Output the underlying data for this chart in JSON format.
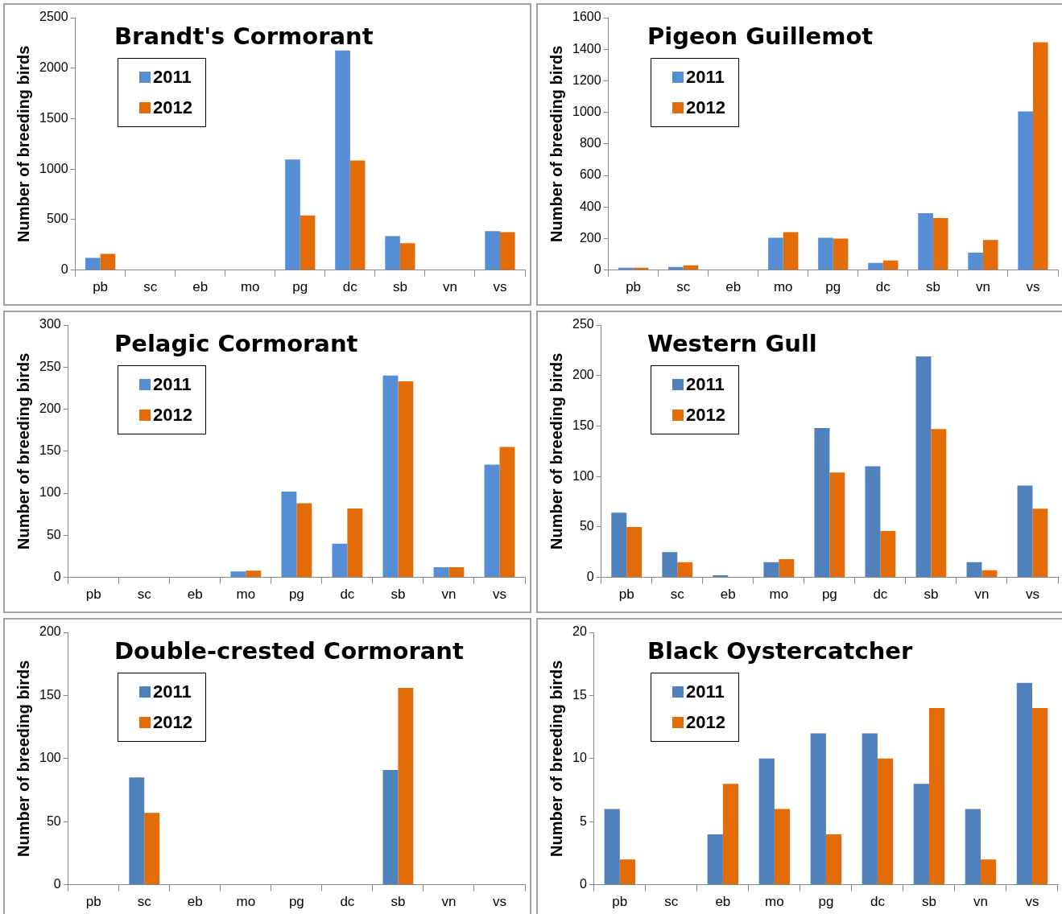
{
  "chart_data": [
    {
      "type": "bar",
      "title": "Brandt's Cormorant",
      "ylabel": "Number of breeding birds",
      "categories": [
        "pb",
        "sc",
        "eb",
        "mo",
        "pg",
        "dc",
        "sb",
        "vn",
        "vs"
      ],
      "ylim": [
        0,
        2500
      ],
      "yticks": [
        0,
        500,
        1000,
        1500,
        2000,
        2500
      ],
      "legend": "top left",
      "series": [
        {
          "name": "2011",
          "color": "#558ed5",
          "values": [
            120,
            0,
            0,
            0,
            1095,
            2175,
            335,
            0,
            385
          ]
        },
        {
          "name": "2012",
          "color": "#e36c09",
          "values": [
            160,
            0,
            0,
            0,
            540,
            1085,
            265,
            0,
            375
          ]
        }
      ]
    },
    {
      "type": "bar",
      "title": "Pigeon Guillemot",
      "ylabel": "Number of breeding birds",
      "categories": [
        "pb",
        "sc",
        "eb",
        "mo",
        "pg",
        "dc",
        "sb",
        "vn",
        "vs"
      ],
      "ylim": [
        0,
        1600
      ],
      "yticks": [
        0,
        200,
        400,
        600,
        800,
        1000,
        1200,
        1400,
        1600
      ],
      "legend": "top left",
      "series": [
        {
          "name": "2011",
          "color": "#558ed5",
          "values": [
            15,
            20,
            0,
            205,
            205,
            45,
            360,
            110,
            1005
          ]
        },
        {
          "name": "2012",
          "color": "#e36c09",
          "values": [
            15,
            30,
            0,
            240,
            200,
            60,
            330,
            190,
            1445
          ]
        }
      ]
    },
    {
      "type": "bar",
      "title": "Pelagic Cormorant",
      "ylabel": "Number of breeding birds",
      "categories": [
        "pb",
        "sc",
        "eb",
        "mo",
        "pg",
        "dc",
        "sb",
        "vn",
        "vs"
      ],
      "ylim": [
        0,
        300
      ],
      "yticks": [
        0,
        50,
        100,
        150,
        200,
        250,
        300
      ],
      "legend": "top left",
      "series": [
        {
          "name": "2011",
          "color": "#558ed5",
          "values": [
            0,
            0,
            0,
            7,
            102,
            40,
            240,
            12,
            134
          ]
        },
        {
          "name": "2012",
          "color": "#e36c09",
          "values": [
            0,
            0,
            0,
            8,
            88,
            82,
            233,
            12,
            155
          ]
        }
      ]
    },
    {
      "type": "bar",
      "title": "Western Gull",
      "ylabel": "Number of breeding birds",
      "categories": [
        "pb",
        "sc",
        "eb",
        "mo",
        "pg",
        "dc",
        "sb",
        "vn",
        "vs"
      ],
      "ylim": [
        0,
        250
      ],
      "yticks": [
        0,
        50,
        100,
        150,
        200,
        250
      ],
      "legend": "top left",
      "series": [
        {
          "name": "2011",
          "color": "#4f81bd",
          "values": [
            64,
            25,
            2,
            15,
            148,
            110,
            219,
            15,
            91
          ]
        },
        {
          "name": "2012",
          "color": "#e36c09",
          "values": [
            50,
            15,
            0,
            18,
            104,
            46,
            147,
            7,
            68
          ]
        }
      ]
    },
    {
      "type": "bar",
      "title": "Double-crested Cormorant",
      "ylabel": "Number of breeding birds",
      "categories": [
        "pb",
        "sc",
        "eb",
        "mo",
        "pg",
        "dc",
        "sb",
        "vn",
        "vs"
      ],
      "ylim": [
        0,
        200
      ],
      "yticks": [
        0,
        50,
        100,
        150,
        200
      ],
      "legend": "top left",
      "series": [
        {
          "name": "2011",
          "color": "#4f81bd",
          "values": [
            0,
            85,
            0,
            0,
            0,
            0,
            91,
            0,
            0
          ]
        },
        {
          "name": "2012",
          "color": "#e36c09",
          "values": [
            0,
            57,
            0,
            0,
            0,
            0,
            156,
            0,
            0
          ]
        }
      ]
    },
    {
      "type": "bar",
      "title": "Black Oystercatcher",
      "ylabel": "Number of breeding birds",
      "categories": [
        "pb",
        "sc",
        "eb",
        "mo",
        "pg",
        "dc",
        "sb",
        "vn",
        "vs"
      ],
      "ylim": [
        0,
        20
      ],
      "yticks": [
        0,
        5,
        10,
        15,
        20
      ],
      "legend": "top left",
      "series": [
        {
          "name": "2011",
          "color": "#4f81bd",
          "values": [
            6,
            0,
            4,
            10,
            12,
            12,
            8,
            6,
            16
          ]
        },
        {
          "name": "2012",
          "color": "#e36c09",
          "values": [
            2,
            0,
            8,
            6,
            4,
            10,
            14,
            2,
            14
          ]
        }
      ]
    }
  ]
}
